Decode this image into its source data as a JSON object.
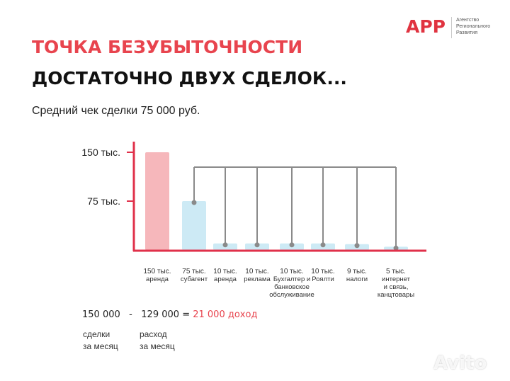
{
  "logo": {
    "mark": "APP",
    "text": "Агентство Регионального Развития"
  },
  "title_line1": "ТОЧКА БЕЗУБЫТОЧНОСТИ",
  "title_line2": "ДОСТАТОЧНО ДВУХ СДЕЛОК...",
  "subtitle": "Средний чек сделки 75 000 руб.",
  "chart_data": {
    "type": "bar",
    "ylim": [
      0,
      150
    ],
    "y_ticks": [
      {
        "value": 150,
        "label": "150 тыс."
      },
      {
        "value": 75,
        "label": "75 тыс."
      }
    ],
    "categories": [
      [
        "150 тыс.",
        "аренда"
      ],
      [
        "75 тыс.",
        "субагент"
      ],
      [
        "10 тыс.",
        "аренда"
      ],
      [
        "10 тыс.",
        "реклама"
      ],
      [
        "10 тыс.",
        "Бухгалтер и",
        "банковское",
        "обслуживание"
      ],
      [
        "10 тыс.",
        "Роялти"
      ],
      [
        "9 тыс.",
        "налоги"
      ],
      [
        "5 тыс.",
        "интернет",
        "и связь,",
        "канцтовары"
      ]
    ],
    "values": [
      150,
      75,
      10,
      10,
      10,
      10,
      9,
      5
    ],
    "colors": {
      "income": "#f6b7bb",
      "expense": "#cdeaf5",
      "axis": "#e0304a",
      "connector": "#8a8a8a"
    }
  },
  "formula": {
    "income": "150 000",
    "minus": "-",
    "expense": "129 000",
    "equals": "=",
    "result": "21 000 доход"
  },
  "notes": {
    "income_note": [
      "сделки",
      "за месяц"
    ],
    "expense_note": [
      "расход",
      "за месяц"
    ]
  },
  "watermark": "Avito"
}
